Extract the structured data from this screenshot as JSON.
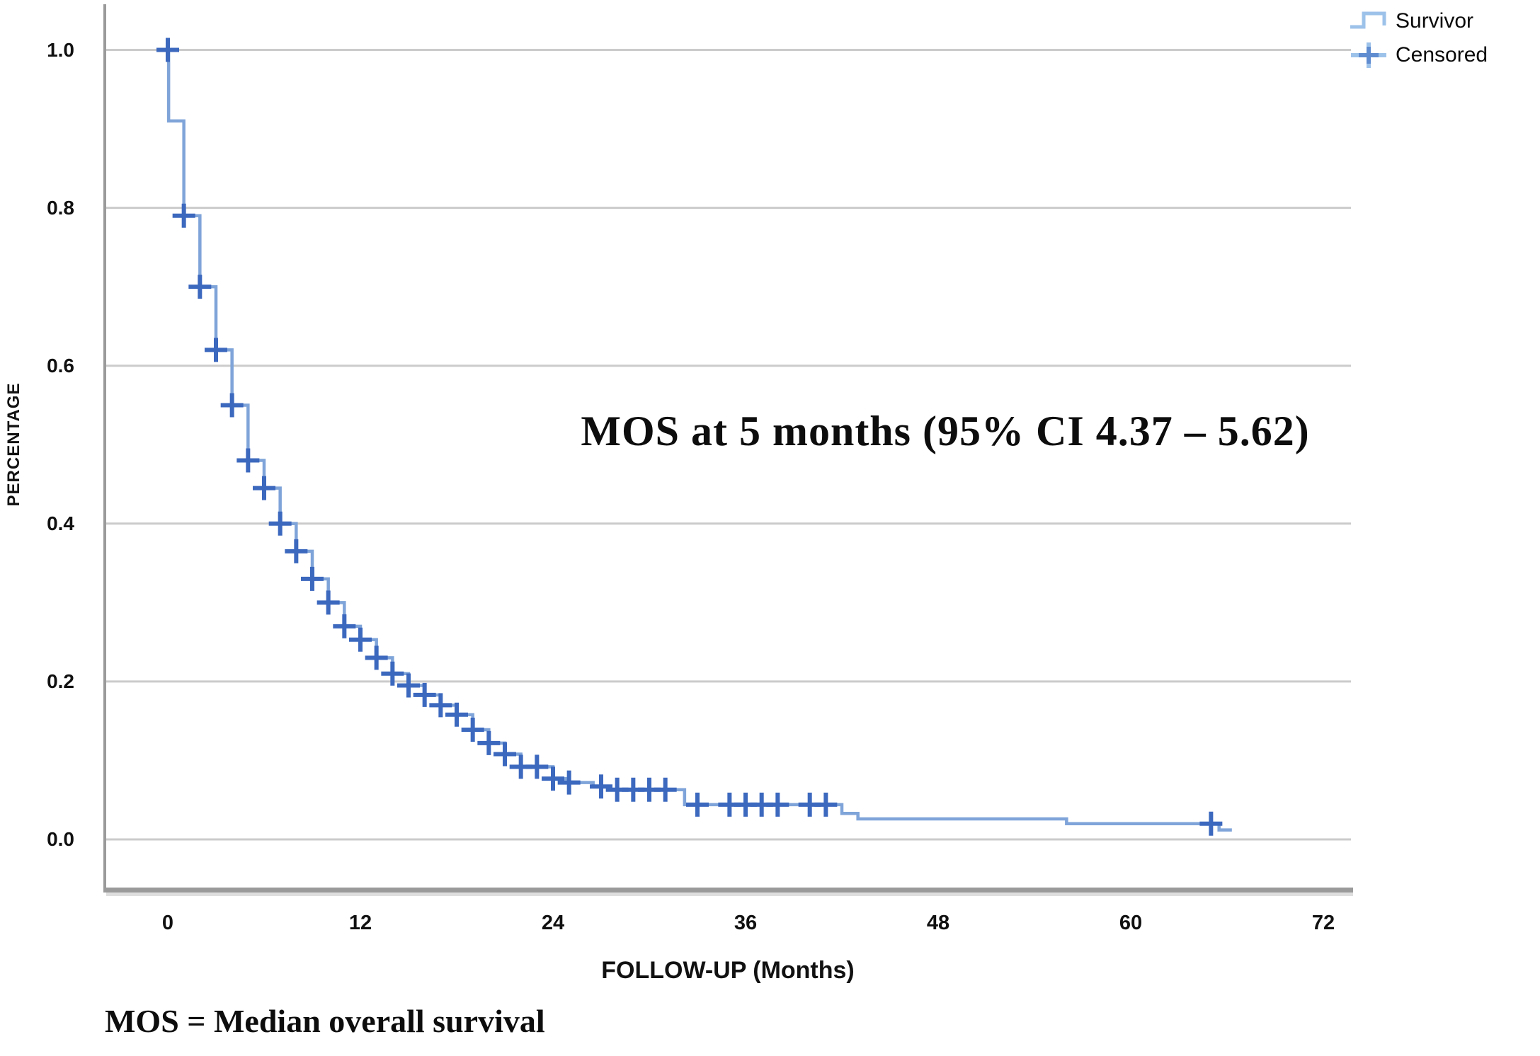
{
  "figure": {
    "annotation": "MOS at 5 months (95% CI 4.37 – 5.62)",
    "footnote": "MOS = Median overall survival",
    "x_axis": {
      "label": "FOLLOW-UP (Months)"
    },
    "y_axis": {
      "label": "PERCENTAGE"
    },
    "legend": {
      "items": [
        {
          "label": "Survivor",
          "marker": "step-line"
        },
        {
          "label": "Censored",
          "marker": "plus"
        }
      ]
    }
  },
  "colors": {
    "line": "#7FA4D9",
    "censor": "#3C68BE",
    "legend_line": "#9DC2EA",
    "grid": "#CBCBCB",
    "axis": "#9A9A9A",
    "axis_shadow": "#DEDEDE",
    "text": "#111111"
  },
  "chart_data": {
    "type": "line",
    "subtype": "kaplan-meier-step",
    "title": "MOS at 5 months (95% CI 4.37 – 5.62)",
    "xlabel": "FOLLOW-UP (Months)",
    "ylabel": "PERCENTAGE",
    "footnote": "MOS = Median overall survival",
    "grid": "horizontal",
    "legend_position": "top-right",
    "xlim": [
      -4,
      74
    ],
    "ylim": [
      -0.07,
      1.05
    ],
    "x_ticks": [
      0,
      12,
      24,
      36,
      48,
      60,
      72
    ],
    "y_ticks": [
      1.0,
      0.8,
      0.6,
      0.4,
      0.2,
      0.0
    ],
    "series": [
      {
        "name": "Survivor",
        "start": [
          0,
          1.0
        ],
        "end_x": 66.3,
        "steps": [
          [
            0.05,
            0.91
          ],
          [
            1,
            0.79
          ],
          [
            2,
            0.7
          ],
          [
            3,
            0.62
          ],
          [
            4,
            0.55
          ],
          [
            5,
            0.48
          ],
          [
            6,
            0.445
          ],
          [
            7,
            0.4
          ],
          [
            8,
            0.365
          ],
          [
            9,
            0.33
          ],
          [
            10,
            0.3
          ],
          [
            11,
            0.27
          ],
          [
            12,
            0.253
          ],
          [
            13,
            0.23
          ],
          [
            14,
            0.21
          ],
          [
            15,
            0.195
          ],
          [
            16,
            0.183
          ],
          [
            17,
            0.17
          ],
          [
            18,
            0.158
          ],
          [
            19,
            0.139
          ],
          [
            20,
            0.122
          ],
          [
            21,
            0.108
          ],
          [
            22,
            0.092
          ],
          [
            24,
            0.077
          ],
          [
            25,
            0.072
          ],
          [
            26.5,
            0.067
          ],
          [
            27.5,
            0.063
          ],
          [
            32.2,
            0.044
          ],
          [
            42,
            0.033
          ],
          [
            43,
            0.026
          ],
          [
            56,
            0.02
          ],
          [
            65.5,
            0.012
          ]
        ]
      }
    ],
    "censored_points": [
      [
        0,
        1.0
      ],
      [
        1,
        0.79
      ],
      [
        2,
        0.7
      ],
      [
        3,
        0.62
      ],
      [
        4,
        0.55
      ],
      [
        5,
        0.48
      ],
      [
        6,
        0.445
      ],
      [
        7,
        0.4
      ],
      [
        8,
        0.365
      ],
      [
        9,
        0.33
      ],
      [
        10,
        0.3
      ],
      [
        11,
        0.27
      ],
      [
        12,
        0.253
      ],
      [
        13,
        0.23
      ],
      [
        14,
        0.21
      ],
      [
        15,
        0.195
      ],
      [
        16,
        0.183
      ],
      [
        17,
        0.17
      ],
      [
        18,
        0.158
      ],
      [
        19,
        0.139
      ],
      [
        20,
        0.122
      ],
      [
        21,
        0.108
      ],
      [
        22,
        0.092
      ],
      [
        23,
        0.092
      ],
      [
        24,
        0.077
      ],
      [
        25,
        0.072
      ],
      [
        27,
        0.067
      ],
      [
        28,
        0.063
      ],
      [
        29,
        0.063
      ],
      [
        30,
        0.063
      ],
      [
        31,
        0.063
      ],
      [
        33,
        0.044
      ],
      [
        35,
        0.044
      ],
      [
        36,
        0.044
      ],
      [
        37,
        0.044
      ],
      [
        38,
        0.044
      ],
      [
        40,
        0.044
      ],
      [
        41,
        0.044
      ],
      [
        65,
        0.02
      ]
    ]
  }
}
